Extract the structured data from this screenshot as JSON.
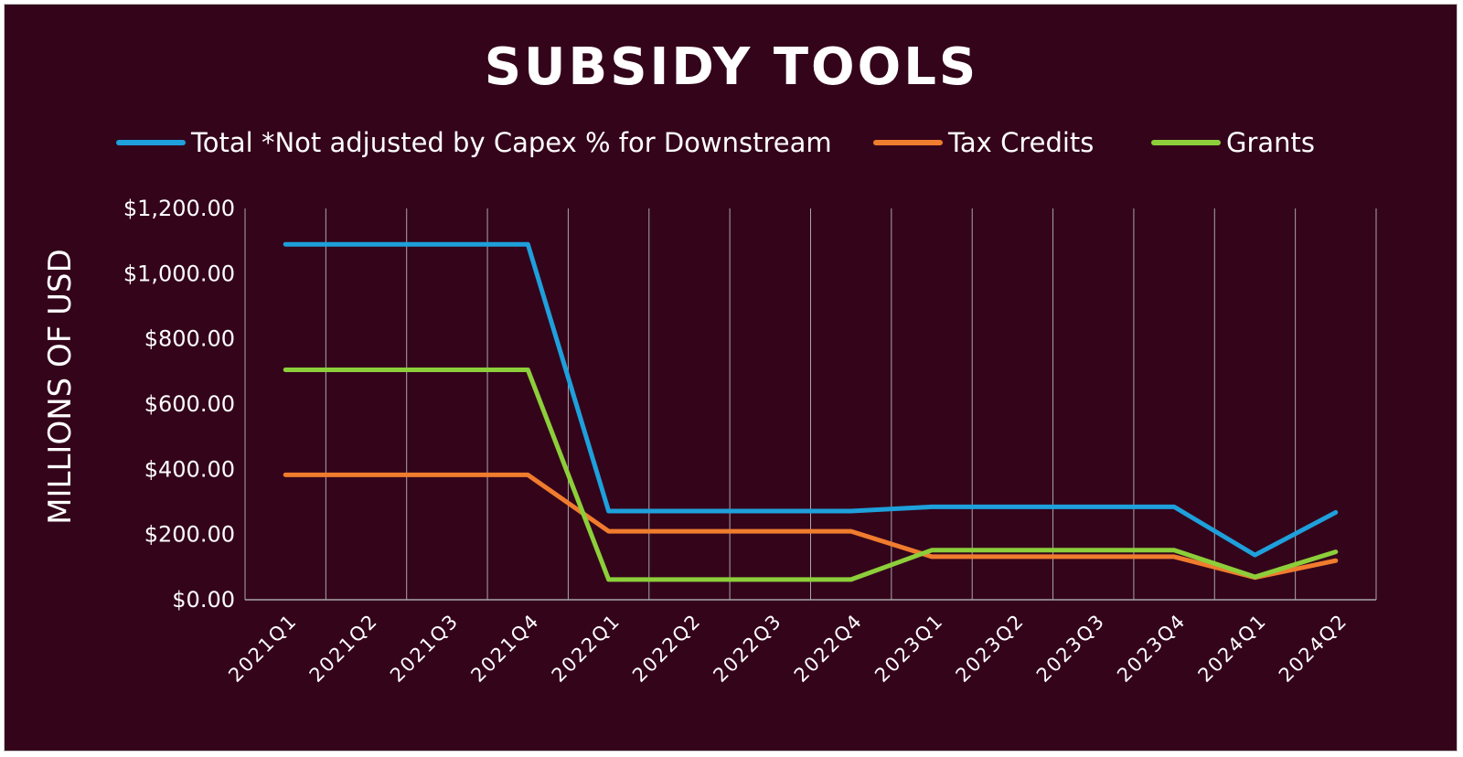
{
  "colors": {
    "background": "#34041b",
    "grid": "#a7a7a7",
    "text": "#ffffff"
  },
  "chart_data": {
    "type": "line",
    "title": "SUBSIDY TOOLS",
    "ylabel": "MILLIONS OF USD",
    "xlabel": "",
    "categories": [
      "2021Q1",
      "2021Q2",
      "2021Q3",
      "2021Q4",
      "2022Q1",
      "2022Q2",
      "2022Q3",
      "2022Q4",
      "2023Q1",
      "2023Q2",
      "2023Q3",
      "2023Q4",
      "2024Q1",
      "2024Q2"
    ],
    "ylim": [
      0,
      1200
    ],
    "yticks": [
      0,
      200,
      400,
      600,
      800,
      1000,
      1200
    ],
    "ytick_labels": [
      "$0.00",
      "$200.00",
      "$400.00",
      "$600.00",
      "$800.00",
      "$1,000.00",
      "$1,200.00"
    ],
    "grid": "vertical",
    "legend_position": "top",
    "series": [
      {
        "name": "Total *Not adjusted by Capex % for Downstream",
        "color": "#1ea0db",
        "values": [
          1090,
          1090,
          1090,
          1090,
          272,
          272,
          272,
          272,
          285,
          285,
          285,
          285,
          137,
          268
        ]
      },
      {
        "name": "Tax Credits",
        "color": "#f07c2e",
        "values": [
          383,
          383,
          383,
          383,
          210,
          210,
          210,
          210,
          132,
          132,
          132,
          132,
          68,
          120
        ]
      },
      {
        "name": "Grants",
        "color": "#8ccf3a",
        "values": [
          705,
          705,
          705,
          705,
          62,
          62,
          62,
          62,
          152,
          152,
          152,
          152,
          70,
          147
        ]
      }
    ]
  }
}
